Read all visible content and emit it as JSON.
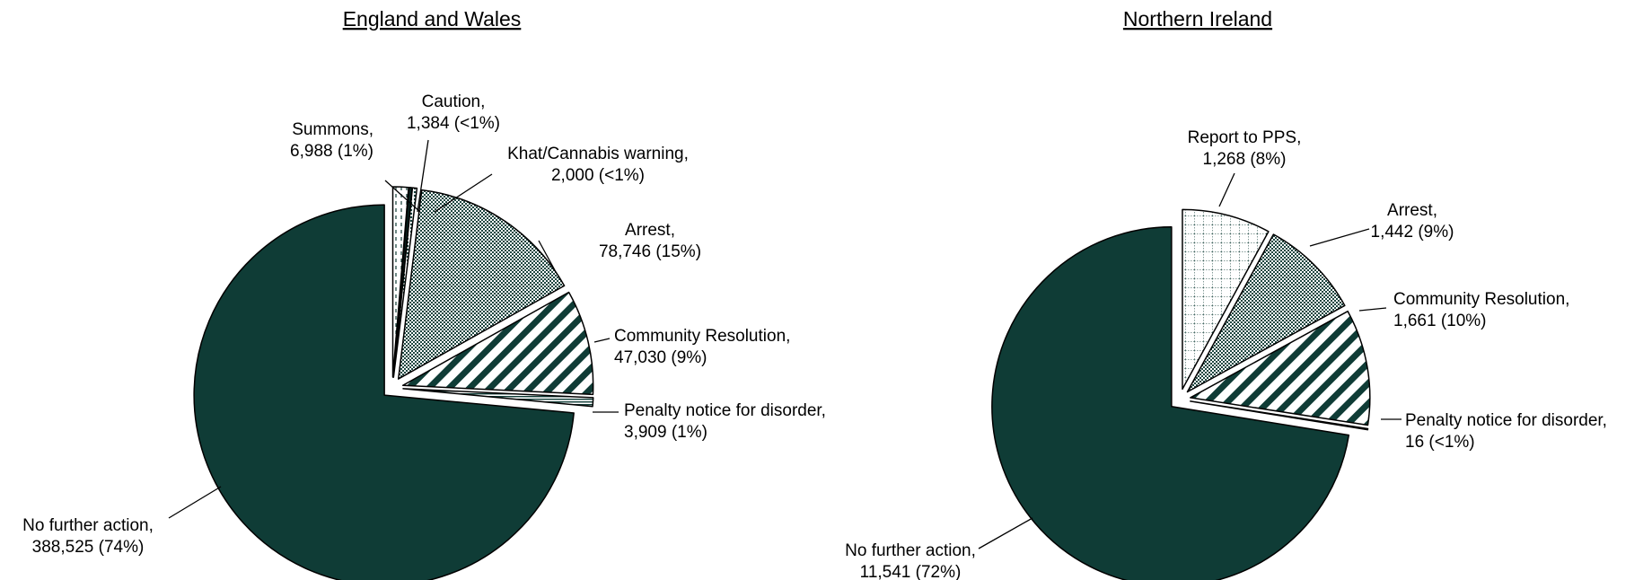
{
  "chart_data": [
    {
      "type": "pie",
      "title": "England and Wales",
      "slices": [
        {
          "name": "Summons",
          "value_text": "6,988",
          "pct_text": "(1%)",
          "value": 6988,
          "pattern": "dashed"
        },
        {
          "name": "Caution",
          "value_text": "1,384",
          "pct_text": "(<1%)",
          "value": 1384,
          "pattern": "solid-dark"
        },
        {
          "name": "Khat/Cannabis warning",
          "value_text": "2,000",
          "pct_text": "(<1%)",
          "value": 2000,
          "pattern": "dots"
        },
        {
          "name": "Arrest",
          "value_text": "78,746",
          "pct_text": "(15%)",
          "value": 78746,
          "pattern": "fine-dots"
        },
        {
          "name": "Community Resolution",
          "value_text": "47,030",
          "pct_text": "(9%)",
          "value": 47030,
          "pattern": "diagonal-stripes"
        },
        {
          "name": "Penalty notice for disorder",
          "value_text": "3,909",
          "pct_text": "(1%)",
          "value": 3909,
          "pattern": "horizontal-lines"
        },
        {
          "name": "No further action",
          "value_text": "388,525",
          "pct_text": "(74%)",
          "value": 388525,
          "pattern": "solid"
        }
      ]
    },
    {
      "type": "pie",
      "title": "Northern Ireland",
      "slices": [
        {
          "name": "Report to PPS",
          "value_text": "1,268",
          "pct_text": "(8%)",
          "value": 1268,
          "pattern": "grid"
        },
        {
          "name": "Arrest",
          "value_text": "1,442",
          "pct_text": "(9%)",
          "value": 1442,
          "pattern": "fine-dots"
        },
        {
          "name": "Community Resolution",
          "value_text": "1,661",
          "pct_text": "(10%)",
          "value": 1661,
          "pattern": "diagonal-stripes"
        },
        {
          "name": "Penalty notice for disorder",
          "value_text": "16",
          "pct_text": "(<1%)",
          "value": 16,
          "pattern": "horizontal-lines"
        },
        {
          "name": "No further action",
          "value_text": "11,541",
          "pct_text": "(72%)",
          "value": 11541,
          "pattern": "solid"
        }
      ]
    }
  ],
  "colors": {
    "dark_green": "#0f3c36",
    "outline": "#000000",
    "background": "#ffffff"
  }
}
